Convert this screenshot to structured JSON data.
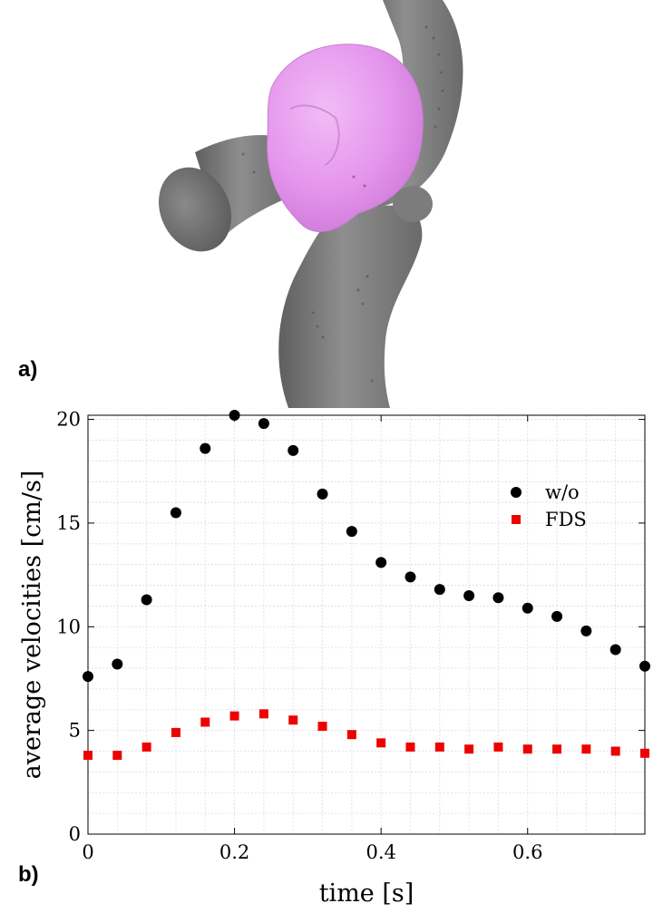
{
  "panels": {
    "a_label": "a)",
    "b_label": "b)"
  },
  "chart_data": {
    "type": "scatter",
    "xlabel": "time [s]",
    "ylabel": "average velocities [cm/s]",
    "xlim": [
      0,
      0.76
    ],
    "ylim": [
      0,
      20.2
    ],
    "xticks": [
      0,
      0.2,
      0.4,
      0.6
    ],
    "xtick_labels": [
      "0",
      "0.2",
      "0.4",
      "0.6"
    ],
    "yticks": [
      0,
      5,
      10,
      15,
      20
    ],
    "ytick_labels": [
      "0",
      "5",
      "10",
      "15",
      "20"
    ],
    "grid": true,
    "legend_position": "top-right",
    "x": [
      0,
      0.04,
      0.08,
      0.12,
      0.16,
      0.2,
      0.24,
      0.28,
      0.32,
      0.36,
      0.4,
      0.44,
      0.48,
      0.52,
      0.56,
      0.6,
      0.64,
      0.68,
      0.72,
      0.76
    ],
    "series": [
      {
        "name": "w/o",
        "marker": "circle",
        "color": "#000000",
        "values": [
          7.6,
          8.2,
          11.3,
          15.5,
          18.6,
          20.2,
          19.8,
          18.5,
          16.4,
          14.6,
          13.1,
          12.4,
          11.8,
          11.5,
          11.4,
          10.9,
          10.5,
          9.8,
          8.9,
          8.1
        ]
      },
      {
        "name": "FDS",
        "marker": "square",
        "color": "#ee0000",
        "values": [
          3.8,
          3.8,
          4.2,
          4.9,
          5.4,
          5.7,
          5.8,
          5.5,
          5.2,
          4.8,
          4.4,
          4.2,
          4.2,
          4.1,
          4.2,
          4.1,
          4.1,
          4.1,
          4.0,
          3.9
        ]
      }
    ]
  }
}
